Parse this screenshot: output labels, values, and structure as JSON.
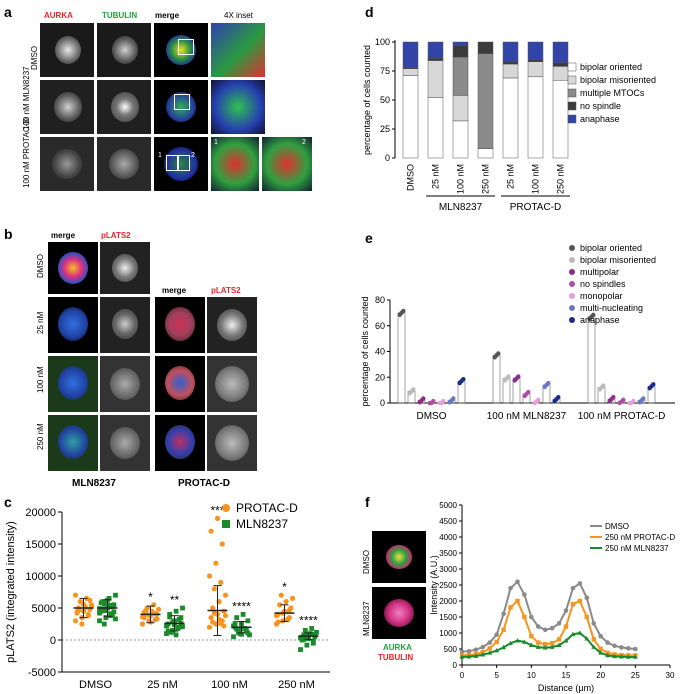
{
  "panels": {
    "a": "a",
    "b": "b",
    "c": "c",
    "d": "d",
    "e": "e",
    "f": "f"
  },
  "panel_a": {
    "headers": [
      "AURKA",
      "TUBULIN",
      "merge",
      "4X inset"
    ],
    "rows": [
      "DMSO",
      "100 nM MLN8237",
      "100 nM PROTAC-D"
    ],
    "inset_nums": [
      "1",
      "2"
    ],
    "colors": {
      "aurka": "#e8252b",
      "tubulin": "#22a33a"
    }
  },
  "panel_b": {
    "headers": [
      "merge",
      "pLATS2"
    ],
    "rows": [
      "DMSO",
      "25 nM",
      "100 nM",
      "250 nM"
    ],
    "group_labels": [
      "MLN8237",
      "PROTAC-D"
    ]
  },
  "chart_data": [
    {
      "panel": "c",
      "type": "scatter",
      "ylabel": "pLATS2 (integrated intensity)",
      "categories": [
        "DMSO",
        "25 nM",
        "100 nM",
        "250 nM"
      ],
      "ylim": [
        -5000,
        20000
      ],
      "yticks": [
        -5000,
        0,
        5000,
        10000,
        15000,
        20000
      ],
      "ytick_labels": [
        "-5000",
        "0",
        "5000",
        "10000",
        "15000",
        "20000"
      ],
      "series": [
        {
          "name": "PROTAC-D",
          "color": "#f7941d",
          "mean": [
            5000,
            4000,
            4600,
            4200
          ],
          "sd": [
            1500,
            1300,
            3900,
            1300
          ],
          "points": [
            [
              3000,
              3500,
              4000,
              4200,
              4500,
              4800,
              5000,
              5200,
              5500,
              6000,
              6500,
              7000,
              2500,
              3800,
              4400,
              5600,
              6200,
              4700,
              5100,
              5300
            ],
            [
              2500,
              3000,
              3200,
              3500,
              3800,
              4000,
              4200,
              4500,
              4800,
              5000,
              5500,
              3600,
              3900,
              4100,
              4300,
              2800,
              3300,
              4600
            ],
            [
              2000,
              2500,
              3000,
              3500,
              4000,
              4500,
              5000,
              6000,
              7000,
              8000,
              9000,
              10000,
              12000,
              15000,
              17000,
              19000,
              2200,
              2800,
              3200,
              3800,
              4200,
              2600
            ],
            [
              2500,
              3000,
              3500,
              4000,
              4500,
              5000,
              5500,
              6000,
              6500,
              7000,
              3200,
              3800,
              4200,
              4600,
              2800
            ]
          ],
          "significance": [
            "",
            "*",
            "***",
            "*"
          ]
        },
        {
          "name": "MLN8237",
          "color": "#1a8a2a",
          "mean": [
            5000,
            2600,
            2000,
            600
          ],
          "sd": [
            1300,
            1200,
            900,
            500
          ],
          "points": [
            [
              3000,
              3500,
              4000,
              4500,
              5000,
              5500,
              6000,
              6500,
              7000,
              2500,
              3800,
              4200,
              4600,
              5200,
              5800,
              6200,
              4400,
              4800,
              5400,
              3300,
              5600,
              4100,
              4900
            ],
            [
              1000,
              1500,
              2000,
              2500,
              3000,
              3500,
              4000,
              4500,
              5000,
              1200,
              1800,
              2200,
              2800,
              3200,
              1400,
              2400,
              2600,
              3600,
              800,
              2100
            ],
            [
              500,
              1000,
              1500,
              2000,
              2500,
              3000,
              3500,
              4000,
              800,
              1200,
              1800,
              2200,
              1600,
              1400,
              2600,
              900,
              1100,
              1700
            ],
            [
              -1500,
              -800,
              -500,
              0,
              200,
              500,
              800,
              1000,
              1200,
              1500,
              1800,
              300,
              600,
              -200,
              400,
              700,
              900,
              100
            ]
          ],
          "significance": [
            "",
            "**",
            "****",
            "****"
          ]
        }
      ]
    },
    {
      "panel": "d",
      "type": "bar",
      "stacked": true,
      "ylabel": "percentage of cells counted",
      "categories": [
        "DMSO",
        "25 nM",
        "100 nM",
        "250 nM",
        "25 nM",
        "100 nM",
        "250 nM"
      ],
      "groups": [
        {
          "label": "MLN8237",
          "from": 1,
          "to": 3
        },
        {
          "label": "PROTAC-D",
          "from": 4,
          "to": 6
        }
      ],
      "ylim": [
        0,
        100
      ],
      "yticks": [
        0,
        25,
        50,
        75,
        100
      ],
      "series": [
        {
          "name": "bipolar oriented",
          "color": "#ffffff",
          "values": [
            71,
            52,
            32,
            8,
            69,
            70,
            67
          ]
        },
        {
          "name": "bipolar misoriented",
          "color": "#d7d7d7",
          "values": [
            6,
            32,
            22,
            0,
            12,
            13,
            12
          ]
        },
        {
          "name": "multiple MTOCs",
          "color": "#8a8a8a",
          "values": [
            0,
            0,
            33,
            82,
            0,
            0,
            0
          ]
        },
        {
          "name": "no spindle",
          "color": "#3b3b3b",
          "values": [
            1,
            2,
            10,
            10,
            2,
            2,
            3
          ]
        },
        {
          "name": "anaphase",
          "color": "#3344a8",
          "values": [
            22,
            14,
            3,
            0,
            17,
            15,
            18
          ]
        }
      ]
    },
    {
      "panel": "e",
      "type": "bar",
      "ylabel": "percentage of cells counted",
      "groups": [
        "DMSO",
        "100 nM MLN8237",
        "100 nM PROTAC-D"
      ],
      "ylim": [
        0,
        80
      ],
      "yticks": [
        0,
        20,
        40,
        60,
        80
      ],
      "series": [
        {
          "name": "bipolar oriented",
          "color": "#555555",
          "marker": "circle",
          "values": [
            70,
            37,
            67
          ]
        },
        {
          "name": "bipolar misoriented",
          "color": "#bbbbbb",
          "marker": "square",
          "values": [
            9,
            19,
            12
          ]
        },
        {
          "name": "multipolar",
          "color": "#8e2b8a",
          "marker": "triangle",
          "values": [
            2,
            19,
            3
          ]
        },
        {
          "name": "no spindles",
          "color": "#b24ca8",
          "marker": "diamond",
          "values": [
            0,
            7,
            1
          ]
        },
        {
          "name": "monopolar",
          "color": "#e4a0d8",
          "marker": "circle",
          "values": [
            0,
            1,
            0
          ]
        },
        {
          "name": "multi-nucleating",
          "color": "#6a77c6",
          "marker": "triangle-down",
          "values": [
            2,
            14,
            2
          ]
        },
        {
          "name": "anaphase",
          "color": "#1a2a8a",
          "marker": "square",
          "values": [
            17,
            3,
            13
          ]
        }
      ]
    },
    {
      "panel": "f",
      "type": "line",
      "ylabel": "Intensity (A.U.)",
      "xlabel": "Distance (µm)",
      "xlim": [
        0,
        30
      ],
      "ylim": [
        0,
        5000
      ],
      "xticks": [
        0,
        5,
        10,
        15,
        20,
        25,
        30
      ],
      "yticks": [
        0,
        500,
        1000,
        1500,
        2000,
        2500,
        3000,
        3500,
        4000,
        4500,
        5000
      ],
      "x": [
        0,
        1,
        2,
        3,
        4,
        5,
        6,
        7,
        8,
        9,
        10,
        11,
        12,
        13,
        14,
        15,
        16,
        17,
        18,
        19,
        20,
        21,
        22,
        23,
        24,
        25
      ],
      "series": [
        {
          "name": "DMSO",
          "color": "#8a8a8a",
          "values": [
            420,
            430,
            480,
            560,
            700,
            950,
            1600,
            2400,
            2600,
            2200,
            1500,
            1200,
            1100,
            1150,
            1300,
            1700,
            2400,
            2550,
            2100,
            1300,
            900,
            700,
            600,
            550,
            520,
            500
          ]
        },
        {
          "name": "250 nM PROTAC-D",
          "color": "#f7941d",
          "values": [
            300,
            310,
            340,
            400,
            520,
            720,
            1100,
            1800,
            2000,
            1500,
            900,
            700,
            650,
            680,
            800,
            1200,
            1900,
            2000,
            1500,
            800,
            500,
            380,
            330,
            310,
            300,
            300
          ]
        },
        {
          "name": "250 nM MLN8237",
          "color": "#1a8a2a",
          "values": [
            250,
            260,
            280,
            320,
            380,
            450,
            550,
            680,
            760,
            720,
            620,
            560,
            540,
            560,
            620,
            760,
            960,
            1000,
            820,
            560,
            380,
            300,
            270,
            260,
            250,
            250
          ]
        }
      ],
      "image_labels": [
        "DMSO",
        "MLN8237"
      ],
      "channel_labels": [
        "AURKA",
        "TUBULIN"
      ]
    }
  ]
}
